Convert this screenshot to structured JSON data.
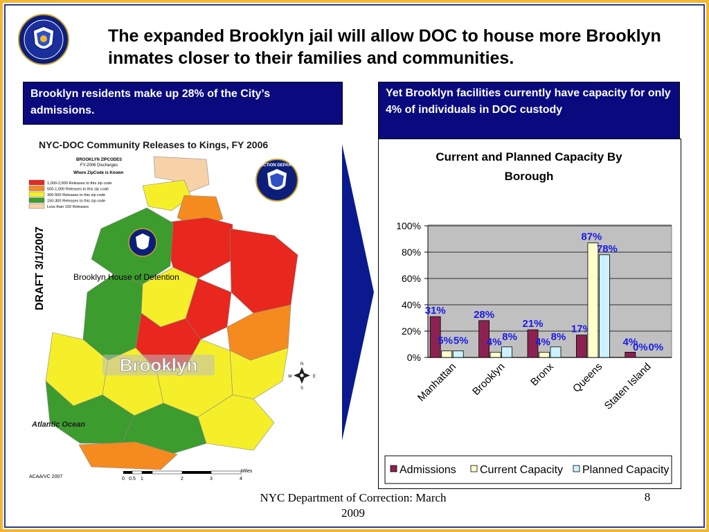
{
  "slide": {
    "title": "The expanded Brooklyn jail will allow DOC to house more Brooklyn inmates closer to their families and communities.",
    "left_box": "Brooklyn residents make up 28% of the City’s admissions.",
    "right_box": "Yet Brooklyn facilities currently have capacity for only 4% of individuals in DOC custody",
    "footer": "NYC Department of Correction: March 2009",
    "page_number": "8",
    "colors": {
      "border_gold": "#f2b632",
      "border_navy": "#2a3a8c",
      "box_navy": "#0a0a7e",
      "label_blue": "#1a1ae6"
    }
  },
  "map": {
    "title": "NYC-DOC Community Releases to Kings, FY 2006",
    "legend_title_1": "BROOKLYN ZIPCODES",
    "legend_title_2": "FY-2006 Discharges",
    "legend_title_3": "Where ZipCode is Known",
    "legend_items": [
      {
        "label": "1,000-2,000 Releases to this zip code",
        "color": "#e8271e"
      },
      {
        "label": "500-1,000 Releases to this zip code",
        "color": "#f58a1f"
      },
      {
        "label": "300-500 Releases to this zip code",
        "color": "#f5ef2a"
      },
      {
        "label": "150-300 Releases to this zip code",
        "color": "#3d9c2e"
      },
      {
        "label": "Less than 150 Releases",
        "color": "#f7d2a8"
      }
    ],
    "draft": "DRAFT 3/1/2007",
    "facility_label": "Brooklyn House of Detention",
    "borough_label": "Brooklyn",
    "ocean_label": "Atlantic Ocean",
    "credit": "ACAA/VC 2007",
    "scale_unit": "Miles",
    "scale_ticks": [
      "0",
      "0.5",
      "1",
      "2",
      "3",
      "4"
    ],
    "seal_text": "CORRECTION DEPARTMENT",
    "compass": [
      "N",
      "E",
      "S",
      "W"
    ]
  },
  "chart_data": {
    "type": "bar",
    "title": "Current and Planned Capacity By Borough",
    "categories": [
      "Manhattan",
      "Brooklyn",
      "Bronx",
      "Queens",
      "Staten Island"
    ],
    "series": [
      {
        "name": "Admissions",
        "values": [
          31,
          28,
          21,
          17,
          4
        ],
        "labels": [
          "31%",
          "28%",
          "21%",
          "17%",
          "4%"
        ],
        "color": "#8b2252"
      },
      {
        "name": "Current Capacity",
        "values": [
          5,
          4,
          4,
          87,
          0
        ],
        "labels": [
          "5%",
          "4%",
          "4%",
          "87%",
          "0%"
        ],
        "color": "#ffffcc"
      },
      {
        "name": "Planned Capacity",
        "values": [
          5,
          8,
          8,
          78,
          0
        ],
        "labels": [
          "5%",
          "8%",
          "8%",
          "78%",
          "0%"
        ],
        "color": "#ccf2ff"
      }
    ],
    "yticks": [
      "0%",
      "20%",
      "40%",
      "60%",
      "80%",
      "100%"
    ],
    "ylim": [
      0,
      100
    ],
    "grid": true,
    "legend_position": "bottom",
    "plot_bg": "#c0c0c0"
  }
}
